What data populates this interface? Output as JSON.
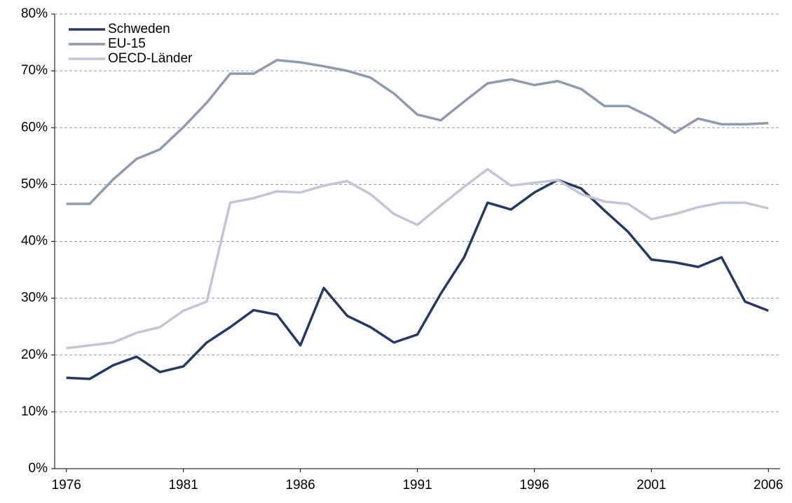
{
  "chart_data": {
    "type": "line",
    "x": [
      1976,
      1977,
      1978,
      1979,
      1980,
      1981,
      1982,
      1983,
      1984,
      1985,
      1986,
      1987,
      1988,
      1989,
      1990,
      1991,
      1992,
      1993,
      1994,
      1995,
      1996,
      1997,
      1998,
      1999,
      2000,
      2001,
      2002,
      2003,
      2004,
      2005,
      2006
    ],
    "series": [
      {
        "name": "Schweden",
        "color": "#243a64",
        "values": [
          16,
          15.8,
          18.2,
          19.7,
          17,
          18,
          22.2,
          24.9,
          27.9,
          27.1,
          21.7,
          31.8,
          26.9,
          24.9,
          22.2,
          23.6,
          30.8,
          37.2,
          46.8,
          45.6,
          48.6,
          50.8,
          49.3,
          45.4,
          41.7,
          36.8,
          36.3,
          35.5,
          37.2,
          29.4,
          27.8
        ]
      },
      {
        "name": "EU-15",
        "color": "#8d9ab0",
        "values": [
          46.6,
          46.6,
          50.9,
          54.5,
          56.2,
          60.1,
          64.4,
          69.5,
          69.5,
          71.9,
          71.5,
          70.8,
          70,
          68.8,
          66,
          62.3,
          61.3,
          64.6,
          67.8,
          68.5,
          67.5,
          68.2,
          66.8,
          63.8,
          63.8,
          61.8,
          59.1,
          61.6,
          60.6,
          60.6,
          60.8
        ]
      },
      {
        "name": "OECD-Länder",
        "color": "#c0c6d4",
        "values": [
          21.2,
          21.7,
          22.2,
          23.9,
          24.9,
          27.8,
          29.4,
          46.8,
          47.6,
          48.8,
          48.6,
          49.8,
          50.6,
          48.3,
          44.8,
          42.9,
          46.3,
          49.6,
          52.7,
          49.8,
          50.3,
          50.8,
          48.3,
          47,
          46.6,
          43.9,
          44.8,
          46,
          46.8,
          46.8,
          45.8
        ]
      }
    ],
    "xlim": [
      1975.5,
      2006.5
    ],
    "xticks": [
      1976,
      1981,
      1986,
      1991,
      1996,
      2001,
      2006
    ],
    "ylim": [
      0,
      80
    ],
    "yticks": [
      {
        "value": 0,
        "label": "0%"
      },
      {
        "value": 10,
        "label": "10%"
      },
      {
        "value": 20,
        "label": "20%"
      },
      {
        "value": 30,
        "label": "30%"
      },
      {
        "value": 40,
        "label": "40%"
      },
      {
        "value": 50,
        "label": "50%"
      },
      {
        "value": 60,
        "label": "60%"
      },
      {
        "value": 70,
        "label": "70%"
      },
      {
        "value": 80,
        "label": "80%"
      }
    ],
    "grid": true,
    "legend": "top-left"
  }
}
